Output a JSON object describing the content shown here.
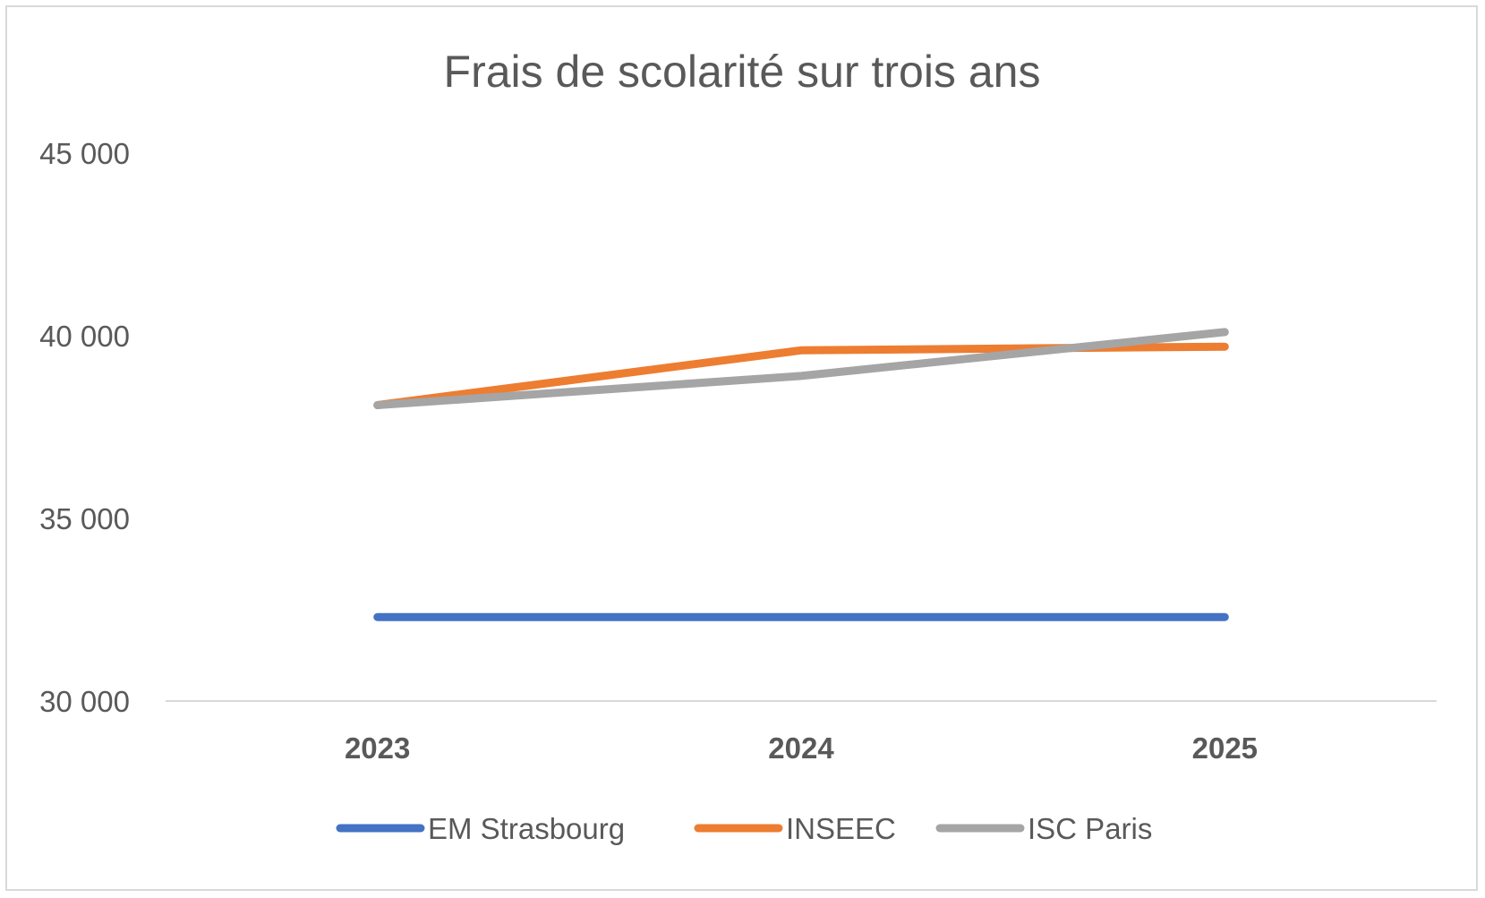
{
  "chart_data": {
    "type": "line",
    "title": "Frais de scolarité sur trois ans",
    "xlabel": "",
    "ylabel": "",
    "categories": [
      "2023",
      "2024",
      "2025"
    ],
    "ylim": [
      30000,
      45000
    ],
    "yticks": [
      30000,
      35000,
      40000,
      45000
    ],
    "ytick_labels": [
      "30 000",
      "35 000",
      "40 000",
      "45 000"
    ],
    "grid": false,
    "legend_position": "bottom",
    "series": [
      {
        "name": "EM Strasbourg",
        "color": "#4472C4",
        "values": [
          32300,
          32300,
          32300
        ]
      },
      {
        "name": "INSEEC",
        "color": "#ED7D31",
        "values": [
          38100,
          39600,
          39700
        ]
      },
      {
        "name": "ISC Paris",
        "color": "#A5A5A5",
        "values": [
          38100,
          38900,
          40100
        ]
      }
    ]
  }
}
